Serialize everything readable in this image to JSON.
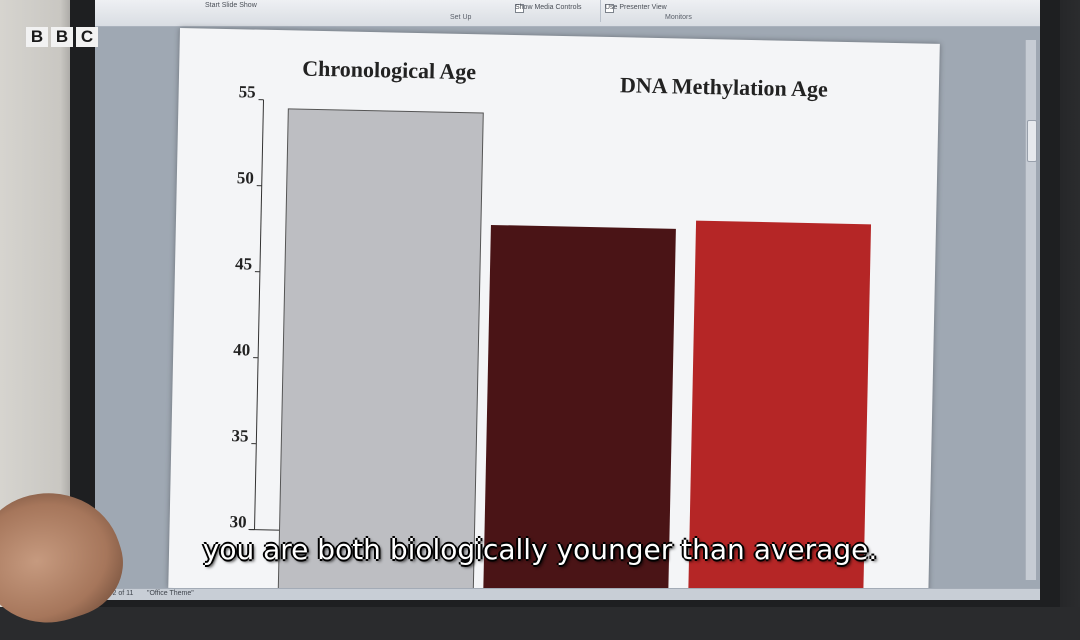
{
  "broadcaster_logo": [
    "B",
    "B",
    "C"
  ],
  "subtitle": "you are both biologically younger than average.",
  "ribbon": {
    "left_label": "Start Slide Show",
    "setup_label": "Set Up",
    "media_controls_label": "Show Media Controls",
    "presenter_view_label": "Use Presenter View",
    "monitors_label": "Monitors"
  },
  "status_bar": {
    "slide_counter": "Slide 2 of 11",
    "theme": "\"Office Theme\""
  },
  "chart_data": {
    "type": "bar",
    "headings": [
      "Chronological Age",
      "DNA Methylation Age"
    ],
    "categories": [
      "",
      "",
      ""
    ],
    "values": [
      54.5,
      48,
      48.5
    ],
    "colors": [
      "#bdbec2",
      "#4a1416",
      "#b52626"
    ],
    "y_ticks": [
      "30",
      "35",
      "40",
      "45",
      "50",
      "55"
    ],
    "ylim": [
      30,
      55
    ],
    "grid": false,
    "legend": "none"
  }
}
